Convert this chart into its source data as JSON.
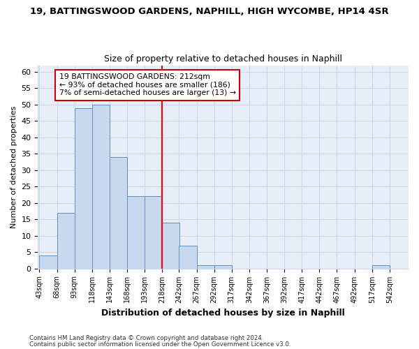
{
  "title1": "19, BATTINGSWOOD GARDENS, NAPHILL, HIGH WYCOMBE, HP14 4SR",
  "title2": "Size of property relative to detached houses in Naphill",
  "xlabel": "Distribution of detached houses by size in Naphill",
  "ylabel": "Number of detached properties",
  "footnote1": "Contains HM Land Registry data © Crown copyright and database right 2024.",
  "footnote2": "Contains public sector information licensed under the Open Government Licence v3.0.",
  "bin_edges": [
    43,
    68,
    93,
    118,
    143,
    168,
    193,
    218,
    242,
    267,
    292,
    317,
    342,
    367,
    392,
    417,
    442,
    467,
    492,
    517,
    542
  ],
  "bar_heights": [
    4,
    17,
    49,
    50,
    34,
    22,
    22,
    14,
    7,
    1,
    1,
    0,
    0,
    0,
    0,
    0,
    0,
    0,
    0,
    1,
    0
  ],
  "bar_color": "#c8d8ee",
  "bar_edge_color": "#6090c0",
  "reference_line_x": 218,
  "ylim": [
    0,
    62
  ],
  "yticks": [
    0,
    5,
    10,
    15,
    20,
    25,
    30,
    35,
    40,
    45,
    50,
    55,
    60
  ],
  "annotation_text": "19 BATTINGSWOOD GARDENS: 212sqm\n← 93% of detached houses are smaller (186)\n7% of semi-detached houses are larger (13) →",
  "annotation_box_color": "#ffffff",
  "annotation_border_color": "#cc0000",
  "grid_color": "#ccd8ea",
  "background_color": "#ffffff",
  "plot_bg_color": "#e8eef8"
}
